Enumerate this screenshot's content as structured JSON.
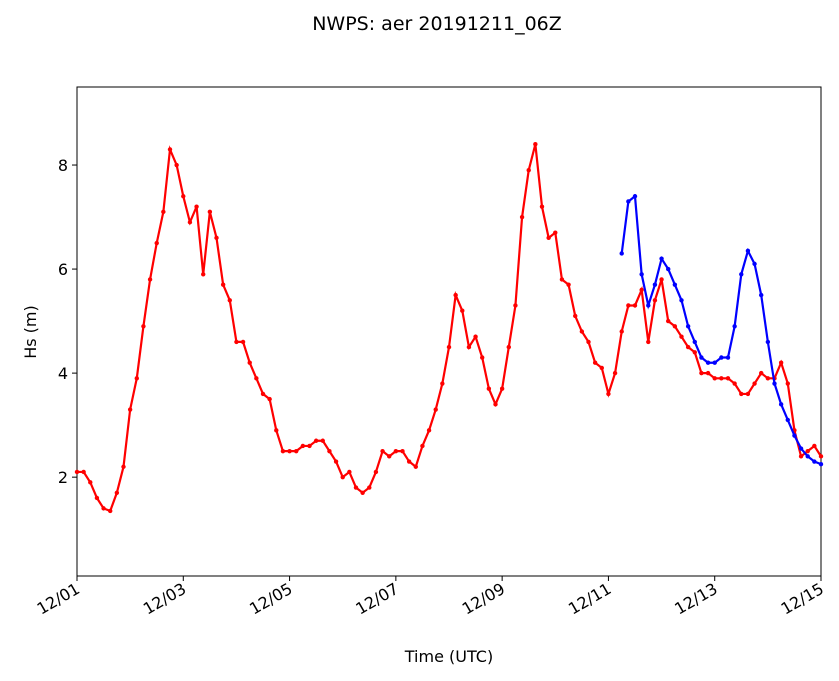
{
  "chart_data": {
    "type": "line",
    "title": "NWPS: aer 20191211_06Z",
    "xlabel": "Time (UTC)",
    "ylabel": "Hs (m)",
    "xlim": [
      0,
      336
    ],
    "ylim": [
      0.1,
      9.5
    ],
    "xticks": [
      {
        "value": 0,
        "label": "12/01"
      },
      {
        "value": 48,
        "label": "12/03"
      },
      {
        "value": 96,
        "label": "12/05"
      },
      {
        "value": 144,
        "label": "12/07"
      },
      {
        "value": 192,
        "label": "12/09"
      },
      {
        "value": 240,
        "label": "12/11"
      },
      {
        "value": 288,
        "label": "12/13"
      },
      {
        "value": 336,
        "label": "12/15"
      }
    ],
    "yticks": [
      2,
      4,
      6,
      8
    ],
    "series": [
      {
        "color": "#ff0000",
        "x": [
          0,
          3,
          6,
          9,
          12,
          15,
          18,
          21,
          24,
          27,
          30,
          33,
          36,
          39,
          42,
          45,
          48,
          51,
          54,
          57,
          60,
          63,
          66,
          69,
          72,
          75,
          78,
          81,
          84,
          87,
          90,
          93,
          96,
          99,
          102,
          105,
          108,
          111,
          114,
          117,
          120,
          123,
          126,
          129,
          132,
          135,
          138,
          141,
          144,
          147,
          150,
          153,
          156,
          159,
          162,
          165,
          168,
          171,
          174,
          177,
          180,
          183,
          186,
          189,
          192,
          195,
          198,
          201,
          204,
          207,
          210,
          213,
          216,
          219,
          222,
          225,
          228,
          231,
          234,
          237,
          240,
          243,
          246,
          249,
          252,
          255,
          258,
          261,
          264,
          267,
          270,
          273,
          276,
          279,
          282,
          285,
          288,
          291,
          294,
          297,
          300,
          303,
          306,
          309,
          312,
          315,
          318,
          321,
          324,
          327,
          330,
          333,
          336
        ],
        "values": [
          2.1,
          2.1,
          1.9,
          1.6,
          1.4,
          1.35,
          1.7,
          2.2,
          3.3,
          3.9,
          4.9,
          5.8,
          6.5,
          7.1,
          8.3,
          8.0,
          7.4,
          6.9,
          7.2,
          5.9,
          7.1,
          6.6,
          5.7,
          5.4,
          4.6,
          4.6,
          4.2,
          3.9,
          3.6,
          3.5,
          2.9,
          2.5,
          2.5,
          2.5,
          2.6,
          2.6,
          2.7,
          2.7,
          2.5,
          2.3,
          2.0,
          2.1,
          1.8,
          1.7,
          1.8,
          2.1,
          2.5,
          2.4,
          2.5,
          2.5,
          2.3,
          2.2,
          2.6,
          2.9,
          3.3,
          3.8,
          4.5,
          5.5,
          5.2,
          4.5,
          4.7,
          4.3,
          3.7,
          3.4,
          3.7,
          4.5,
          5.3,
          7.0,
          7.9,
          8.4,
          7.2,
          6.6,
          6.7,
          5.8,
          5.7,
          5.1,
          4.8,
          4.6,
          4.2,
          4.1,
          3.6,
          4.0,
          4.8,
          5.3,
          5.3,
          5.6,
          4.6,
          5.4,
          5.8,
          5.0,
          4.9,
          4.7,
          4.5,
          4.4,
          4.0,
          4.0,
          3.9,
          3.9,
          3.9,
          3.8,
          3.6,
          3.6,
          3.8,
          4.0,
          3.9,
          3.9,
          4.2,
          3.8,
          2.9,
          2.4,
          2.5,
          2.6,
          2.4
        ]
      },
      {
        "color": "#0000ff",
        "x": [
          246,
          249,
          252,
          255,
          258,
          261,
          264,
          267,
          270,
          273,
          276,
          279,
          282,
          285,
          288,
          291,
          294,
          297,
          300,
          303,
          306,
          309,
          312,
          315,
          318,
          321,
          324,
          327,
          330,
          333,
          336
        ],
        "values": [
          6.3,
          7.3,
          7.4,
          5.9,
          5.3,
          5.7,
          6.2,
          6.0,
          5.7,
          5.4,
          4.9,
          4.6,
          4.3,
          4.2,
          4.2,
          4.3,
          4.3,
          4.9,
          5.9,
          6.35,
          6.1,
          5.5,
          4.6,
          3.8,
          3.4,
          3.1,
          2.8,
          2.55,
          2.4,
          2.3,
          2.25
        ]
      }
    ]
  }
}
